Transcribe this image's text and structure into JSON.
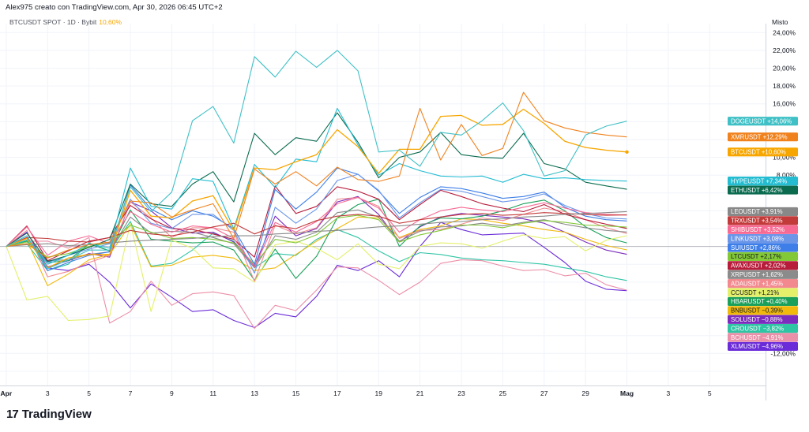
{
  "header": {
    "attribution": "Alex975 creato con TradingView.com, Apr 30, 2026 06:45 UTC+2",
    "symbol_legend": "BTCUSDT SPOT · 1D · Bybit",
    "symbol_value": "10,60%",
    "scale_mode": "Misto"
  },
  "brand": {
    "logo_mark": "17",
    "name": "TradingView"
  },
  "chart_data": {
    "type": "line",
    "y_unit": "%",
    "ylim": [
      -15.6,
      25.0
    ],
    "grid": true,
    "baseline": 0,
    "y_ticks": [
      "24,00%",
      "22,00%",
      "20,00%",
      "18,00%",
      "16,00%",
      "10,00%",
      "8,00%",
      "-12,00%"
    ],
    "y_tick_values": [
      24,
      22,
      20,
      18,
      16,
      10,
      8,
      -12
    ],
    "x_ticks": [
      "Apr",
      "3",
      "5",
      "7",
      "9",
      "11",
      "13",
      "15",
      "17",
      "19",
      "21",
      "23",
      "25",
      "27",
      "29",
      "Mag",
      "3",
      "5"
    ],
    "x_tick_values": [
      1,
      3,
      5,
      7,
      9,
      11,
      13,
      15,
      17,
      19,
      21,
      23,
      25,
      27,
      29,
      31,
      33,
      35
    ],
    "x_range": [
      0.7,
      37.7
    ],
    "series": [
      {
        "name": "XLMUSDT",
        "color": "#6a2cd8",
        "label": "−4,96%",
        "last": -4.96,
        "values": [
          0,
          1.6,
          -2.4,
          -2.7,
          -2.0,
          -4.0,
          -6.9,
          -4.2,
          -5.7,
          -7.3,
          -7.1,
          -8.3,
          -9.1,
          -7.5,
          -7.9,
          -5.6,
          -2.1,
          -2.7,
          -1.6,
          -3.4,
          0,
          2.7,
          1.9,
          1.3,
          1.4,
          1.5,
          -0.1,
          -1.8,
          -3.9,
          -4.8,
          -4.96
        ]
      },
      {
        "name": "BCHUSDT",
        "color": "#ec8fa8",
        "label": "−4,91%",
        "last": -4.91,
        "values": [
          0,
          0.6,
          0.6,
          -0.2,
          1.0,
          -8.6,
          -7.3,
          -3.9,
          -6.6,
          -5.3,
          -5.1,
          -5.5,
          -9.2,
          -6.6,
          -7.2,
          -4.9,
          -2.3,
          -2.4,
          -3.8,
          -5.4,
          -4.0,
          -1.9,
          -1.5,
          -1.6,
          -2.2,
          -2.7,
          -2.6,
          -3.3,
          -3.0,
          -4.3,
          -4.91
        ]
      },
      {
        "name": "CROUSDT",
        "color": "#2ec4a4",
        "label": "−3,82%",
        "last": -3.82,
        "values": [
          0,
          0.3,
          -2.7,
          -2.0,
          0.4,
          -0.5,
          2.8,
          -2.2,
          -1.9,
          -0.4,
          1.5,
          0.6,
          -2.4,
          -0.8,
          -1.0,
          0.8,
          1.9,
          1.0,
          -0.5,
          -1.7,
          -0.7,
          -0.9,
          -1.3,
          -1.5,
          -1.6,
          -1.8,
          -2.0,
          -2.4,
          -2.8,
          -3.4,
          -3.82
        ]
      },
      {
        "name": "SOLUSDT",
        "color": "#7b2bbd",
        "label": "−0,88%",
        "last": -0.88,
        "values": [
          0,
          1.0,
          -2.3,
          -1.6,
          -0.8,
          -1.2,
          5.0,
          4.0,
          2.1,
          1.5,
          1.6,
          0.5,
          -2.2,
          3.4,
          1.2,
          2.0,
          5.0,
          5.6,
          3.6,
          0.5,
          2.2,
          3.3,
          3.7,
          3.5,
          3.3,
          3.1,
          2.6,
          1.6,
          0.5,
          -0.4,
          -0.88
        ]
      },
      {
        "name": "BNBUSDT",
        "color": "#f0b90b",
        "label": "−0,39%",
        "last": -0.39,
        "values": [
          0,
          0.7,
          -4.4,
          -3.1,
          -1.5,
          -0.9,
          2.5,
          -2.3,
          -2.1,
          -1.2,
          -1.0,
          -1.3,
          -2.7,
          -2.4,
          -0.9,
          0.6,
          2.0,
          3.3,
          3.2,
          1.0,
          1.9,
          2.3,
          3.1,
          3.0,
          2.6,
          2.3,
          1.9,
          1.6,
          0.8,
          0.1,
          -0.39
        ]
      },
      {
        "name": "HBARUSDT",
        "color": "#1aa05a",
        "label": "+0,40%",
        "last": 0.4,
        "values": [
          0,
          0.6,
          -1.8,
          -1.6,
          0.3,
          -0.5,
          4.1,
          0.8,
          0.6,
          0.4,
          0.5,
          -0.4,
          -3.8,
          -0.3,
          -3.6,
          -1.1,
          3.2,
          4.7,
          5.3,
          0.0,
          2.3,
          3.2,
          3.1,
          3.4,
          4.0,
          4.8,
          5.2,
          4.0,
          2.2,
          1.0,
          0.4
        ]
      },
      {
        "name": "CCUSDT",
        "color": "#e4f06a",
        "label": "+1,21%",
        "last": 1.21,
        "values": [
          0,
          -6.0,
          -5.6,
          -8.3,
          -8.2,
          -7.8,
          2.6,
          -7.3,
          0.7,
          -0.2,
          -2.4,
          -2.5,
          -4.0,
          0.2,
          0.6,
          -0.2,
          -1.5,
          0.3,
          -2.0,
          -2.5,
          0.0,
          0.4,
          0.3,
          -0.2,
          0.6,
          1.3,
          0.9,
          1.1,
          -0.5,
          0.7,
          1.21
        ]
      },
      {
        "name": "ADAUSDT",
        "color": "#f2898f",
        "label": "+1,45%",
        "last": 1.45,
        "values": [
          0,
          1.8,
          -3.4,
          -2.8,
          -1.8,
          -1.0,
          5.0,
          3.2,
          1.0,
          2.1,
          2.1,
          1.6,
          -3.9,
          2.4,
          1.4,
          2.1,
          5.3,
          5.5,
          4.5,
          0.9,
          1.8,
          1.9,
          2.5,
          3.2,
          2.9,
          3.6,
          4.3,
          3.9,
          3.0,
          2.1,
          1.45
        ]
      },
      {
        "name": "XRPUSDT",
        "color": "#8b8b8b",
        "label": "+1,62%",
        "last": 1.62,
        "values": [
          0,
          0.9,
          -1.6,
          -1.5,
          -0.9,
          -0.6,
          3.3,
          1.5,
          1.7,
          1.6,
          1.0,
          0.3,
          -2.4,
          1.2,
          0.8,
          1.6,
          3.8,
          4.1,
          3.3,
          0.6,
          1.7,
          2.2,
          2.3,
          2.6,
          2.3,
          2.7,
          3.0,
          2.5,
          2.1,
          1.8,
          1.62
        ]
      },
      {
        "name": "AVAXUSDT",
        "color": "#b71c3a",
        "label": "+2,02%",
        "last": 2.02,
        "values": [
          0,
          2.3,
          -1.6,
          -0.5,
          0.6,
          1.0,
          4.6,
          3.1,
          2.0,
          1.9,
          1.4,
          0.8,
          -1.2,
          6.8,
          3.7,
          4.5,
          6.7,
          6.2,
          5.3,
          3.0,
          4.7,
          6.3,
          5.6,
          4.8,
          4.3,
          3.9,
          4.7,
          3.6,
          3.0,
          2.5,
          2.02
        ]
      },
      {
        "name": "LTCUSDT",
        "color": "#83c837",
        "label": "+2,17%",
        "last": 2.17,
        "values": [
          0,
          0.5,
          -1.2,
          -0.8,
          0.0,
          0.4,
          2.4,
          1.6,
          0.9,
          1.0,
          0.8,
          0.4,
          -2.0,
          0.8,
          0.4,
          1.3,
          3.2,
          3.5,
          3.0,
          0.5,
          1.3,
          1.8,
          2.4,
          2.4,
          2.1,
          2.6,
          2.9,
          2.7,
          2.4,
          2.3,
          2.17
        ]
      },
      {
        "name": "SUIUSDT",
        "color": "#3d7ee8",
        "label": "+2,86%",
        "last": 2.86,
        "values": [
          0,
          1.2,
          -2.7,
          -1.8,
          -1.0,
          -0.6,
          6.9,
          4.2,
          3.0,
          4.0,
          3.4,
          2.0,
          -2.0,
          6.4,
          4.2,
          6.1,
          8.8,
          8.1,
          6.2,
          3.7,
          5.5,
          6.7,
          6.5,
          6.0,
          5.4,
          5.6,
          6.1,
          4.4,
          3.4,
          3.0,
          2.86
        ]
      },
      {
        "name": "LINKUSDT",
        "color": "#6b96e8",
        "label": "+3,08%",
        "last": 3.08,
        "values": [
          0,
          0.9,
          -1.8,
          -1.0,
          -0.3,
          0.3,
          5.3,
          2.6,
          2.0,
          3.6,
          3.6,
          1.8,
          -3.0,
          4.4,
          2.6,
          4.2,
          7.4,
          8.1,
          6.3,
          3.2,
          4.9,
          6.4,
          6.2,
          5.6,
          5.0,
          5.3,
          5.9,
          4.6,
          3.7,
          3.2,
          3.08
        ]
      },
      {
        "name": "SHIBUSDT",
        "color": "#f76a94",
        "label": "+3,52%",
        "last": 3.52,
        "values": [
          0,
          2.2,
          -1.0,
          0.6,
          1.2,
          0.3,
          3.9,
          2.5,
          1.6,
          2.3,
          2.1,
          0.9,
          -2.3,
          2.7,
          1.6,
          2.8,
          4.8,
          5.5,
          4.3,
          1.6,
          3.0,
          4.0,
          4.4,
          4.1,
          3.9,
          4.4,
          4.9,
          4.3,
          3.8,
          3.6,
          3.52
        ]
      },
      {
        "name": "TRXUSDT",
        "color": "#c23a3a",
        "label": "+3,54%",
        "last": 3.54,
        "values": [
          0,
          1.0,
          0.9,
          0.6,
          0.5,
          1.0,
          1.8,
          1.4,
          1.2,
          1.6,
          2.2,
          2.6,
          1.4,
          2.3,
          2.0,
          2.9,
          3.4,
          3.6,
          3.4,
          2.6,
          3.0,
          3.3,
          3.6,
          3.7,
          3.5,
          3.6,
          3.8,
          3.7,
          3.6,
          3.5,
          3.54
        ]
      },
      {
        "name": "LEOUSDT",
        "color": "#888888",
        "label": "+3,91%",
        "last": 3.91,
        "values": [
          0,
          0.2,
          0.3,
          0.1,
          0.2,
          0.4,
          0.6,
          0.7,
          0.8,
          0.9,
          1.1,
          1.2,
          1.2,
          1.4,
          1.5,
          1.7,
          1.8,
          2.0,
          2.2,
          2.3,
          2.5,
          2.7,
          2.8,
          3.0,
          3.1,
          3.3,
          3.4,
          3.6,
          3.7,
          3.8,
          3.91
        ]
      },
      {
        "name": "ETHUSDT",
        "color": "#0a6b4e",
        "label": "+6,42%",
        "last": 6.42,
        "values": [
          0,
          1.5,
          -1.7,
          -1.0,
          -0.1,
          0.8,
          7.0,
          4.8,
          4.5,
          7.0,
          8.4,
          5.0,
          12.7,
          10.3,
          12.2,
          11.8,
          15.0,
          11.7,
          7.7,
          10.0,
          10.6,
          12.8,
          10.3,
          10.0,
          9.9,
          12.7,
          9.3,
          8.7,
          7.2,
          6.8,
          6.42
        ]
      },
      {
        "name": "HYPEUSDT",
        "color": "#23bcd1",
        "label": "+7,34%",
        "last": 7.34,
        "values": [
          0,
          0.7,
          -2.0,
          -1.0,
          0.3,
          -0.2,
          8.8,
          4.5,
          4.2,
          7.6,
          7.3,
          2.0,
          9.2,
          6.6,
          9.8,
          9.5,
          15.5,
          11.4,
          8.0,
          9.3,
          8.5,
          7.9,
          7.8,
          7.9,
          7.2,
          8.1,
          7.6,
          7.7,
          7.5,
          7.4,
          7.34
        ]
      },
      {
        "name": "BTCUSDT",
        "color": "#f7a600",
        "label": "+10,60%",
        "last": 10.6,
        "values": [
          0,
          0.9,
          -2.4,
          -1.3,
          -0.9,
          -0.9,
          6.3,
          3.4,
          3.2,
          5.1,
          5.7,
          1.8,
          8.8,
          8.6,
          9.5,
          10.3,
          13.1,
          11.2,
          8.2,
          10.9,
          10.9,
          14.6,
          14.7,
          13.6,
          13.7,
          15.4,
          13.8,
          11.8,
          11.1,
          10.8,
          10.6
        ]
      },
      {
        "name": "XMRUSDT",
        "color": "#f0821e",
        "label": "+12,29%",
        "last": 12.29,
        "values": [
          0,
          0.3,
          -1.3,
          -0.4,
          0.2,
          0.5,
          5.1,
          4.9,
          3.3,
          4.1,
          4.8,
          0.9,
          8.7,
          7.0,
          8.4,
          6.8,
          8.9,
          7.5,
          7.3,
          7.9,
          15.5,
          9.7,
          13.7,
          10.2,
          11.0,
          17.3,
          14.1,
          13.3,
          12.8,
          12.5,
          12.29
        ]
      },
      {
        "name": "DOGEUSDT",
        "color": "#3fc0c6",
        "label": "+14,06%",
        "last": 14.06,
        "values": [
          0,
          1.2,
          -2.5,
          -1.5,
          -0.4,
          -0.4,
          6.7,
          3.9,
          6.1,
          14.1,
          15.7,
          11.6,
          21.3,
          19.0,
          21.9,
          20.1,
          22.0,
          19.7,
          10.6,
          10.8,
          9.0,
          12.8,
          12.5,
          14.1,
          16.1,
          13.0,
          7.9,
          8.5,
          12.5,
          13.5,
          14.06
        ]
      }
    ]
  }
}
